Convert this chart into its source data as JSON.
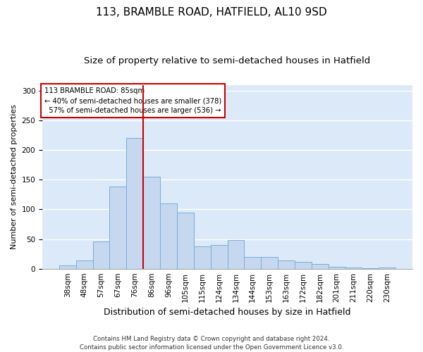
{
  "title": "113, BRAMBLE ROAD, HATFIELD, AL10 9SD",
  "subtitle": "Size of property relative to semi-detached houses in Hatfield",
  "xlabel": "Distribution of semi-detached houses by size in Hatfield",
  "ylabel": "Number of semi-detached properties",
  "categories": [
    "38sqm",
    "48sqm",
    "57sqm",
    "67sqm",
    "76sqm",
    "86sqm",
    "96sqm",
    "105sqm",
    "115sqm",
    "124sqm",
    "134sqm",
    "144sqm",
    "153sqm",
    "163sqm",
    "172sqm",
    "182sqm",
    "201sqm",
    "211sqm",
    "220sqm",
    "230sqm"
  ],
  "values": [
    5,
    14,
    46,
    138,
    220,
    155,
    110,
    95,
    38,
    40,
    48,
    20,
    20,
    14,
    12,
    8,
    3,
    2,
    1,
    2
  ],
  "bar_color": "#c5d8f0",
  "bar_edgecolor": "#7aadd4",
  "property_line_index": 5,
  "property_value": 85,
  "property_label": "113 BRAMBLE ROAD: 85sqm",
  "smaller_pct": 40,
  "smaller_count": 378,
  "larger_pct": 57,
  "larger_count": 536,
  "ylim": [
    0,
    310
  ],
  "background_color": "#dce9f8",
  "grid_color": "#ffffff",
  "annotation_box_color": "#ffffff",
  "annotation_box_edgecolor": "#cc0000",
  "footer": "Contains HM Land Registry data © Crown copyright and database right 2024.\nContains public sector information licensed under the Open Government Licence v3.0.",
  "title_fontsize": 11,
  "subtitle_fontsize": 9.5,
  "xlabel_fontsize": 9,
  "ylabel_fontsize": 8,
  "tick_fontsize": 7.5
}
